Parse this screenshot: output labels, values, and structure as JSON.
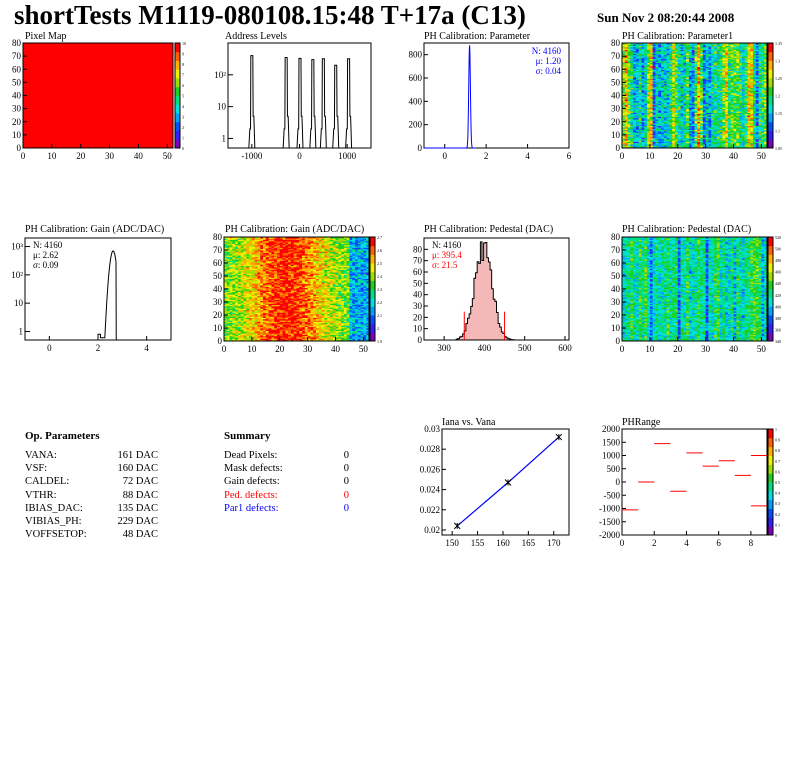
{
  "header": {
    "title": "shortTests M1119-080108.15:48 T+17a (C13)",
    "date": "Sun Nov  2 08:20:44 2008"
  },
  "colors": {
    "palette": [
      "#8000c0",
      "#3020ff",
      "#0050ff",
      "#00a0ff",
      "#00e0e0",
      "#00e080",
      "#20d020",
      "#a0e000",
      "#f0f000",
      "#ffb000",
      "#ff6000",
      "#ff0000"
    ],
    "histogram_line": "#000000",
    "blue_text": "#0000ff",
    "red_text": "#ff0000",
    "pink_fill": "#f4b8b8"
  },
  "op_parameters": {
    "heading": "Op. Parameters",
    "rows": [
      {
        "name": "VANA:",
        "value": "161 DAC"
      },
      {
        "name": "VSF:",
        "value": "160 DAC"
      },
      {
        "name": "CALDEL:",
        "value": "72 DAC"
      },
      {
        "name": "VTHR:",
        "value": "88 DAC"
      },
      {
        "name": "IBIAS_DAC:",
        "value": "135 DAC"
      },
      {
        "name": "VIBIAS_PH:",
        "value": "229 DAC"
      },
      {
        "name": "VOFFSETOP:",
        "value": "48 DAC"
      }
    ]
  },
  "summary": {
    "heading": "Summary",
    "rows": [
      {
        "name": "Dead Pixels:",
        "value": "0",
        "color": "#000000"
      },
      {
        "name": "Mask defects:",
        "value": "0",
        "color": "#000000"
      },
      {
        "name": "Gain defects:",
        "value": "0",
        "color": "#000000"
      },
      {
        "name": "Ped. defects:",
        "value": "0",
        "color": "#ff0000"
      },
      {
        "name": "Par1 defects:",
        "value": "0",
        "color": "#0000ff"
      }
    ]
  },
  "chart_data": [
    {
      "id": "pixel_map",
      "type": "heatmap",
      "title": "Pixel Map",
      "xlim": [
        0,
        52
      ],
      "ylim": [
        0,
        80
      ],
      "xticks": [
        "0",
        "10",
        "20",
        "30",
        "40",
        "50"
      ],
      "yticks": [
        "0",
        "10",
        "20",
        "30",
        "40",
        "50",
        "60",
        "70",
        "80"
      ],
      "uniform_value": 10,
      "zlim": [
        0,
        10
      ],
      "zticks": [
        "0",
        "1",
        "2",
        "3",
        "4",
        "5",
        "6",
        "7",
        "8",
        "9",
        "10"
      ]
    },
    {
      "id": "address_levels",
      "type": "bar",
      "title": "Address Levels",
      "xlim": [
        -1500,
        1500
      ],
      "ylog": true,
      "ylim": [
        0.5,
        1000
      ],
      "xticks": [
        "-1000",
        "0",
        "1000"
      ],
      "yticks": [
        "1",
        "10",
        "10²"
      ],
      "peaks": [
        {
          "x": -1000,
          "y": 400
        },
        {
          "x": -280,
          "y": 350
        },
        {
          "x": 10,
          "y": 330
        },
        {
          "x": 280,
          "y": 300
        },
        {
          "x": 500,
          "y": 320
        },
        {
          "x": 760,
          "y": 200
        },
        {
          "x": 1030,
          "y": 320
        }
      ]
    },
    {
      "id": "ph_parameter",
      "type": "bar",
      "title": "PH Calibration: Parameter",
      "xlim": [
        -1,
        6
      ],
      "ylim": [
        0,
        900
      ],
      "xticks": [
        "0",
        "2",
        "4",
        "6"
      ],
      "yticks": [
        "0",
        "200",
        "400",
        "600",
        "800"
      ],
      "mean": 1.2,
      "sigma": 0.04,
      "peak": 880,
      "stats": [
        "N: 4160",
        "μ: 1.20",
        "σ: 0.04"
      ],
      "stats_color": "#0000ff"
    },
    {
      "id": "ph_parameter1_map",
      "type": "heatmap",
      "title": "PH Calibration: Parameter1",
      "xlim": [
        0,
        52
      ],
      "ylim": [
        0,
        80
      ],
      "xticks": [
        "0",
        "10",
        "20",
        "30",
        "40",
        "50"
      ],
      "yticks": [
        "0",
        "10",
        "20",
        "30",
        "40",
        "50",
        "60",
        "70",
        "80"
      ],
      "zlim": [
        1.05,
        1.35
      ],
      "zticks": [
        "1.05",
        "1.1",
        "1.15",
        "1.2",
        "1.25",
        "1.3",
        "1.35"
      ]
    },
    {
      "id": "gain_hist",
      "type": "bar",
      "title": "PH Calibration: Gain (ADC/DAC)",
      "xlim": [
        -1,
        5
      ],
      "ylog": true,
      "ylim": [
        0.5,
        2000
      ],
      "xticks": [
        "0",
        "2",
        "4"
      ],
      "yticks": [
        "1",
        "10",
        "10²",
        "10³"
      ],
      "mean": 2.62,
      "sigma": 0.09,
      "peak": 700,
      "stats": [
        "N: 4160",
        "μ: 2.62",
        "σ: 0.09"
      ],
      "stats_color": "#000000"
    },
    {
      "id": "gain_map",
      "type": "heatmap",
      "title": "PH Calibration: Gain (ADC/DAC)",
      "xlim": [
        0,
        52
      ],
      "ylim": [
        0,
        80
      ],
      "xticks": [
        "0",
        "10",
        "20",
        "30",
        "40",
        "50"
      ],
      "yticks": [
        "0",
        "10",
        "20",
        "30",
        "40",
        "50",
        "60",
        "70",
        "80"
      ],
      "zlim": [
        1.9,
        2.8
      ],
      "zticks": [
        "1.9",
        "2",
        "2.1",
        "2.2",
        "2.3",
        "2.4",
        "2.5",
        "2.6",
        "2.7"
      ]
    },
    {
      "id": "pedestal_hist",
      "type": "bar",
      "title": "PH Calibration: Pedestal (DAC)",
      "xlim": [
        250,
        610
      ],
      "ylim": [
        0,
        90
      ],
      "xticks": [
        "300",
        "400",
        "500",
        "600"
      ],
      "yticks": [
        "0",
        "10",
        "20",
        "30",
        "40",
        "50",
        "60",
        "70",
        "80"
      ],
      "mean": 395.4,
      "sigma": 21.5,
      "peak": 82,
      "cut_lines": [
        350,
        450
      ],
      "stats": [
        "N: 4160",
        "μ: 395.4",
        "σ: 21.5"
      ],
      "stats_color": "#ff0000"
    },
    {
      "id": "pedestal_map",
      "type": "heatmap",
      "title": "PH Calibration: Pedestal (DAC)",
      "xlim": [
        0,
        52
      ],
      "ylim": [
        0,
        80
      ],
      "xticks": [
        "0",
        "10",
        "20",
        "30",
        "40",
        "50"
      ],
      "yticks": [
        "0",
        "10",
        "20",
        "30",
        "40",
        "50",
        "60",
        "70",
        "80"
      ],
      "zlim": [
        340,
        540
      ],
      "zticks": [
        "340",
        "360",
        "380",
        "400",
        "420",
        "440",
        "460",
        "480",
        "500",
        "520"
      ]
    },
    {
      "id": "iana_vana",
      "type": "line",
      "title": "Iana vs. Vana",
      "xlim": [
        148,
        173
      ],
      "ylim": [
        0.0195,
        0.03
      ],
      "xticks": [
        "150",
        "155",
        "160",
        "165",
        "170"
      ],
      "yticks": [
        "0.02",
        "0.022",
        "0.024",
        "0.026",
        "0.028",
        "0.03"
      ],
      "points": [
        {
          "x": 151,
          "y": 0.0204
        },
        {
          "x": 161,
          "y": 0.0247
        },
        {
          "x": 171,
          "y": 0.0292
        }
      ]
    },
    {
      "id": "ph_range",
      "type": "scatter",
      "title": "PHRange",
      "xlim": [
        0,
        9
      ],
      "ylim": [
        -2000,
        2000
      ],
      "xticks": [
        "0",
        "2",
        "4",
        "6",
        "8"
      ],
      "yticks": [
        "-2000",
        "-1500",
        "-1000",
        "-500",
        "0",
        "500",
        "1000",
        "1500",
        "2000"
      ],
      "zlim": [
        0,
        1
      ],
      "zticks": [
        "0",
        "0.1",
        "0.2",
        "0.3",
        "0.4",
        "0.5",
        "0.6",
        "0.7",
        "0.8",
        "0.9",
        "1"
      ],
      "segments": [
        {
          "x": 0,
          "y": -1050
        },
        {
          "x": 1,
          "y": 0
        },
        {
          "x": 2,
          "y": 1450
        },
        {
          "x": 3,
          "y": -350
        },
        {
          "x": 4,
          "y": 1100
        },
        {
          "x": 5,
          "y": 600
        },
        {
          "x": 6,
          "y": 800
        },
        {
          "x": 7,
          "y": 250
        },
        {
          "x": 8,
          "y": -900
        },
        {
          "x": 8,
          "y": 1000
        }
      ]
    }
  ]
}
